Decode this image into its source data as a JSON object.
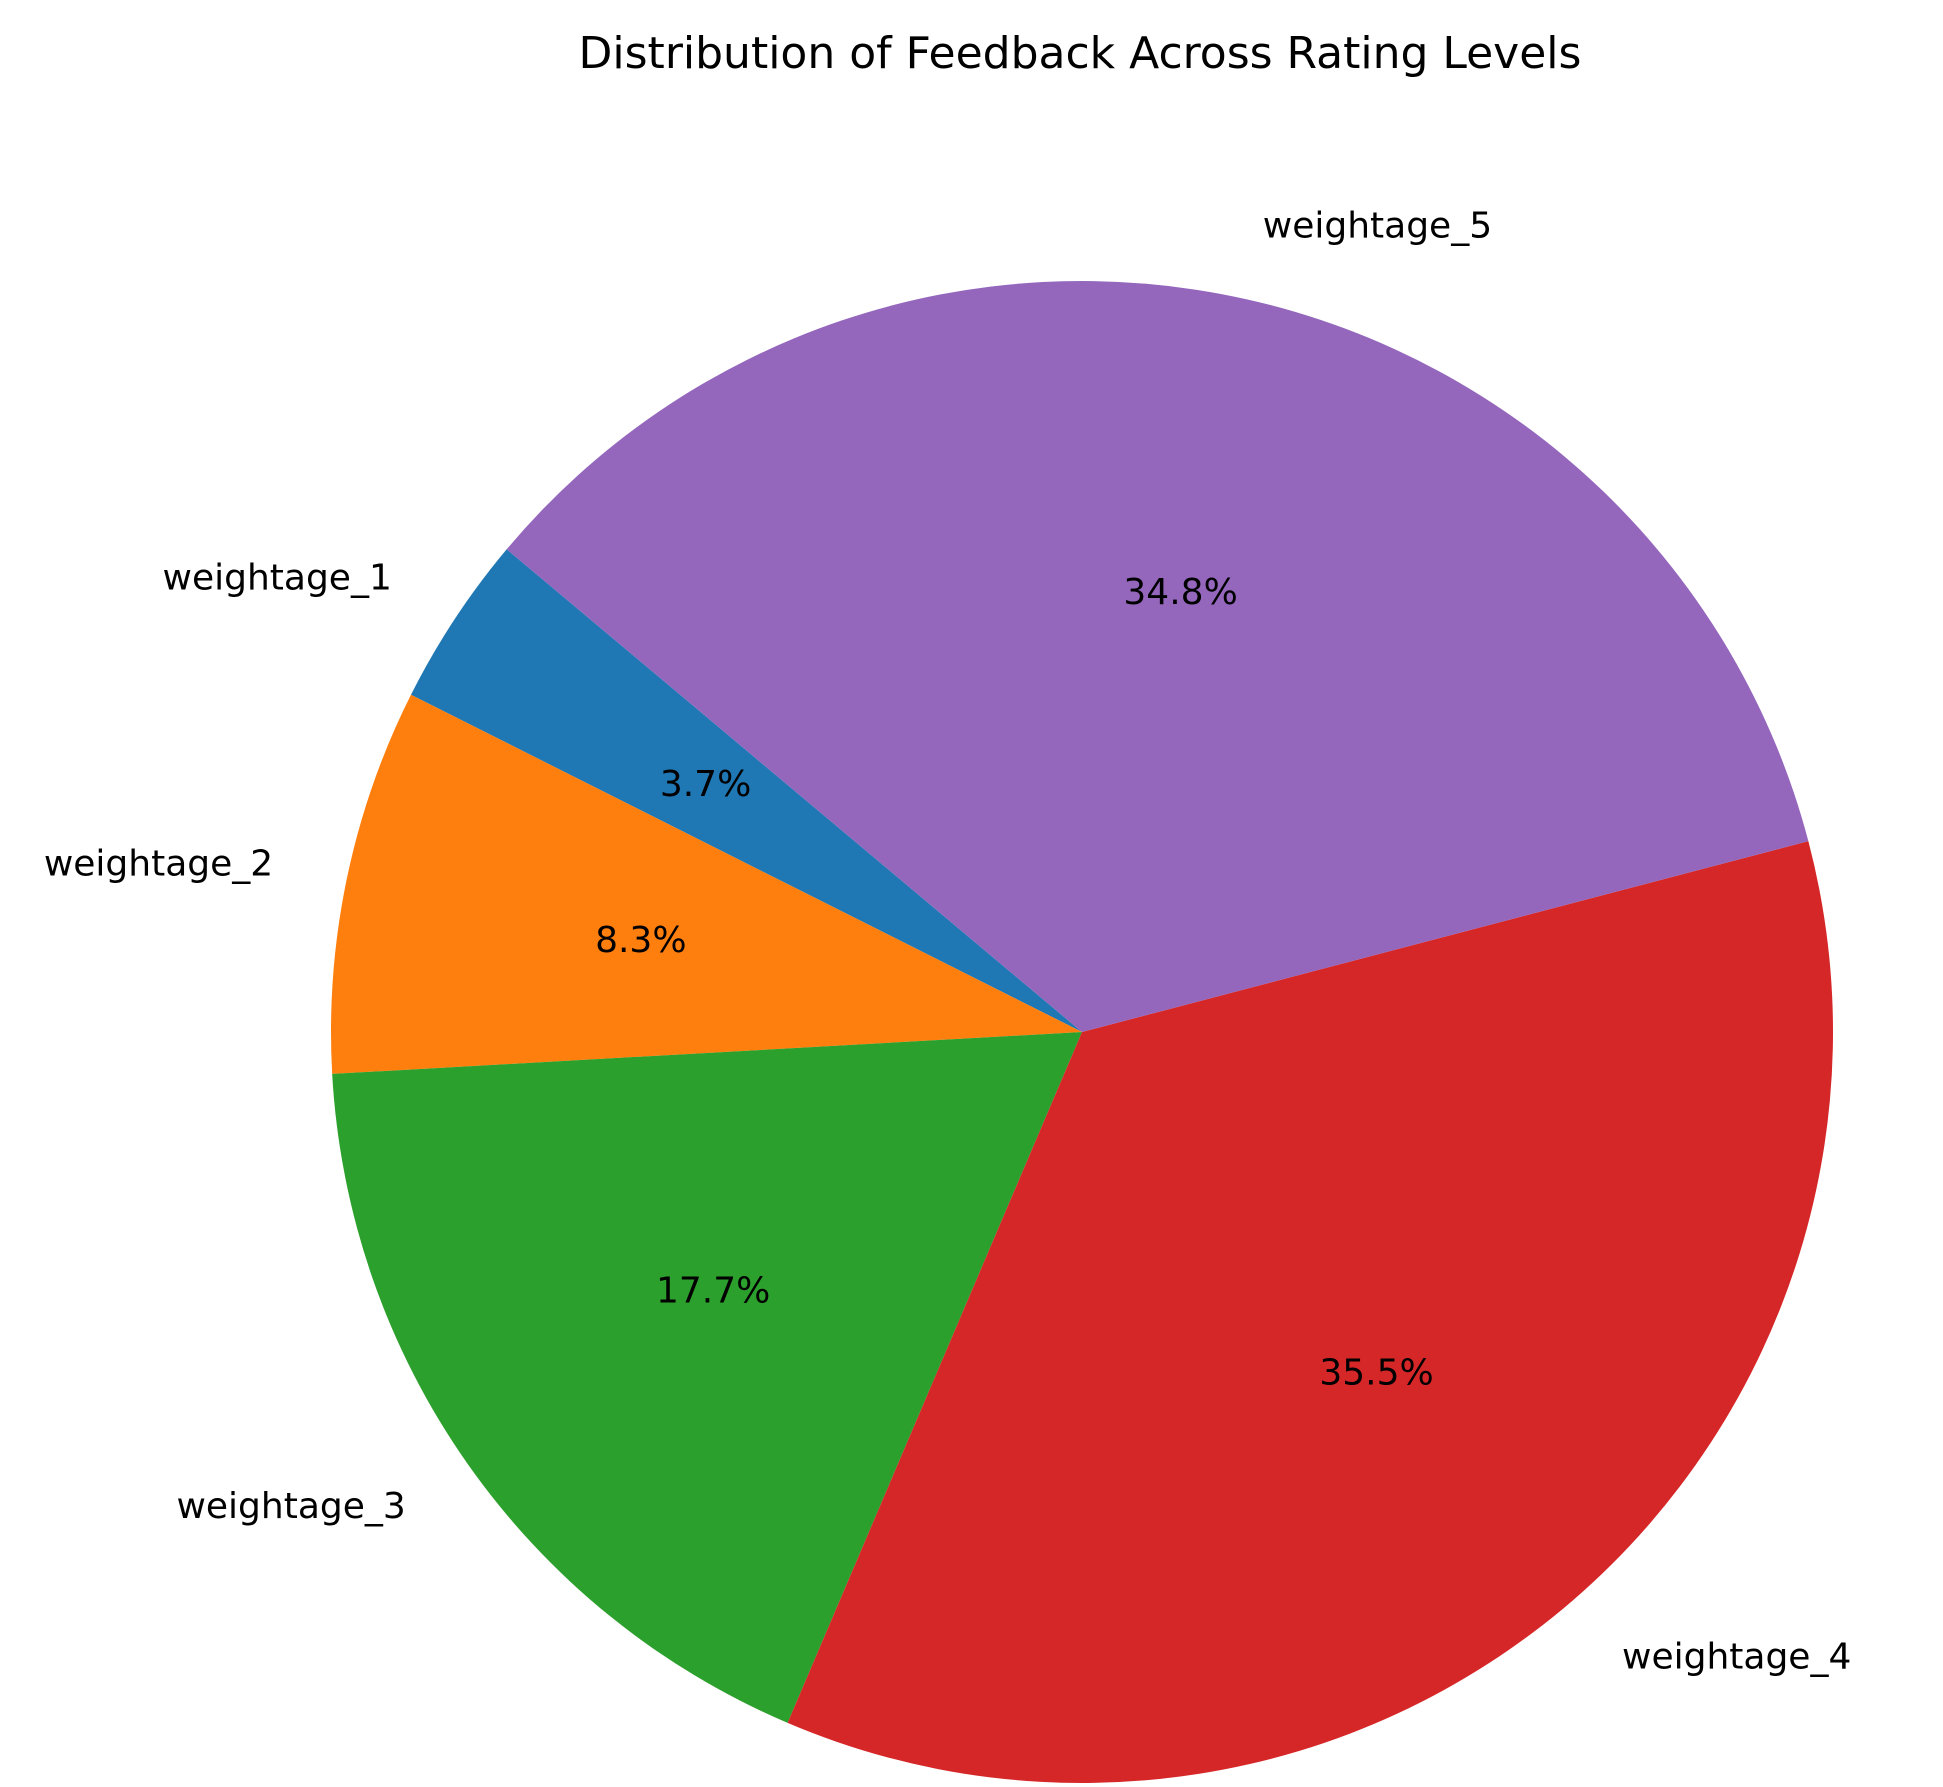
{
  "chart_data": {
    "type": "pie",
    "title": "Distribution of Feedback Across Rating Levels",
    "slices": [
      {
        "label": "weightage_1",
        "value": 3.7,
        "pct_label": "3.7%",
        "color": "#1f77b4"
      },
      {
        "label": "weightage_2",
        "value": 8.3,
        "pct_label": "8.3%",
        "color": "#ff7f0e"
      },
      {
        "label": "weightage_3",
        "value": 17.7,
        "pct_label": "17.7%",
        "color": "#2ca02c"
      },
      {
        "label": "weightage_4",
        "value": 35.5,
        "pct_label": "35.5%",
        "color": "#d62728"
      },
      {
        "label": "weightage_5",
        "value": 34.8,
        "pct_label": "34.8%",
        "color": "#9467bd"
      }
    ],
    "start_angle_deg": 140,
    "direction": "counterclockwise",
    "legend": "none"
  }
}
